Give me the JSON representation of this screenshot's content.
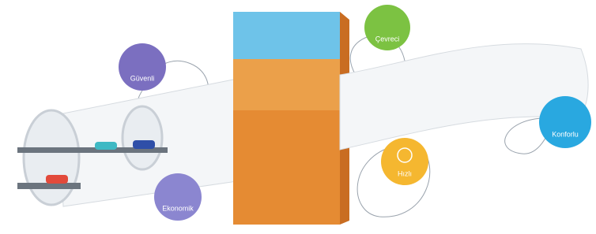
{
  "badges": [
    {
      "label": "Güvenli"
    },
    {
      "label": "Çevreci"
    },
    {
      "label": "Hızlı"
    },
    {
      "label": "Ekonomik"
    },
    {
      "label": "Konforlu"
    }
  ]
}
